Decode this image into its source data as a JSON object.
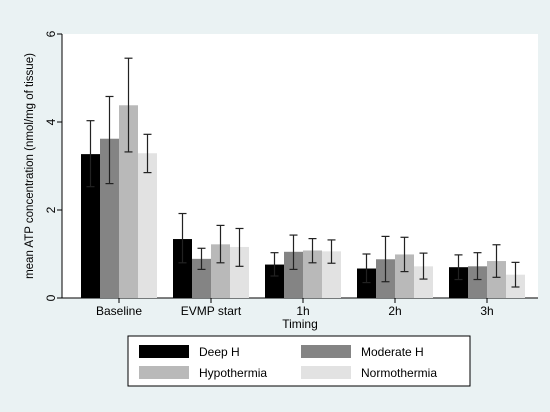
{
  "chart_data": {
    "type": "bar",
    "title": "",
    "xlabel": "Timing",
    "ylabel": "mean ATP concentration (nmol/mg of tissue)",
    "categories": [
      "Baseline",
      "EVMP start",
      "1h",
      "2h",
      "3h"
    ],
    "ylim": [
      0,
      6
    ],
    "yticks": [
      0,
      2,
      4,
      6
    ],
    "grid": false,
    "legend_position": "bottom",
    "series": [
      {
        "name": "Deep H",
        "color": "#000000",
        "values": [
          3.27,
          1.34,
          0.76,
          0.67,
          0.7
        ],
        "err_low": [
          2.53,
          0.8,
          0.5,
          0.35,
          0.42
        ],
        "err_high": [
          4.03,
          1.92,
          1.03,
          1.0,
          0.98
        ]
      },
      {
        "name": "Moderate H",
        "color": "#848484",
        "values": [
          3.62,
          0.89,
          1.05,
          0.88,
          0.72
        ],
        "err_low": [
          2.6,
          0.65,
          0.65,
          0.37,
          0.42
        ],
        "err_high": [
          4.58,
          1.13,
          1.43,
          1.4,
          1.03
        ]
      },
      {
        "name": "Hypothermia",
        "color": "#b9b9b9",
        "values": [
          4.38,
          1.22,
          1.08,
          0.99,
          0.84
        ],
        "err_low": [
          3.32,
          0.8,
          0.8,
          0.6,
          0.47
        ],
        "err_high": [
          5.45,
          1.65,
          1.35,
          1.38,
          1.21
        ]
      },
      {
        "name": "Normothermia",
        "color": "#e2e2e2",
        "values": [
          3.29,
          1.16,
          1.06,
          0.72,
          0.53
        ],
        "err_low": [
          2.85,
          0.72,
          0.79,
          0.43,
          0.25
        ],
        "err_high": [
          3.72,
          1.58,
          1.32,
          1.02,
          0.81
        ]
      }
    ]
  }
}
